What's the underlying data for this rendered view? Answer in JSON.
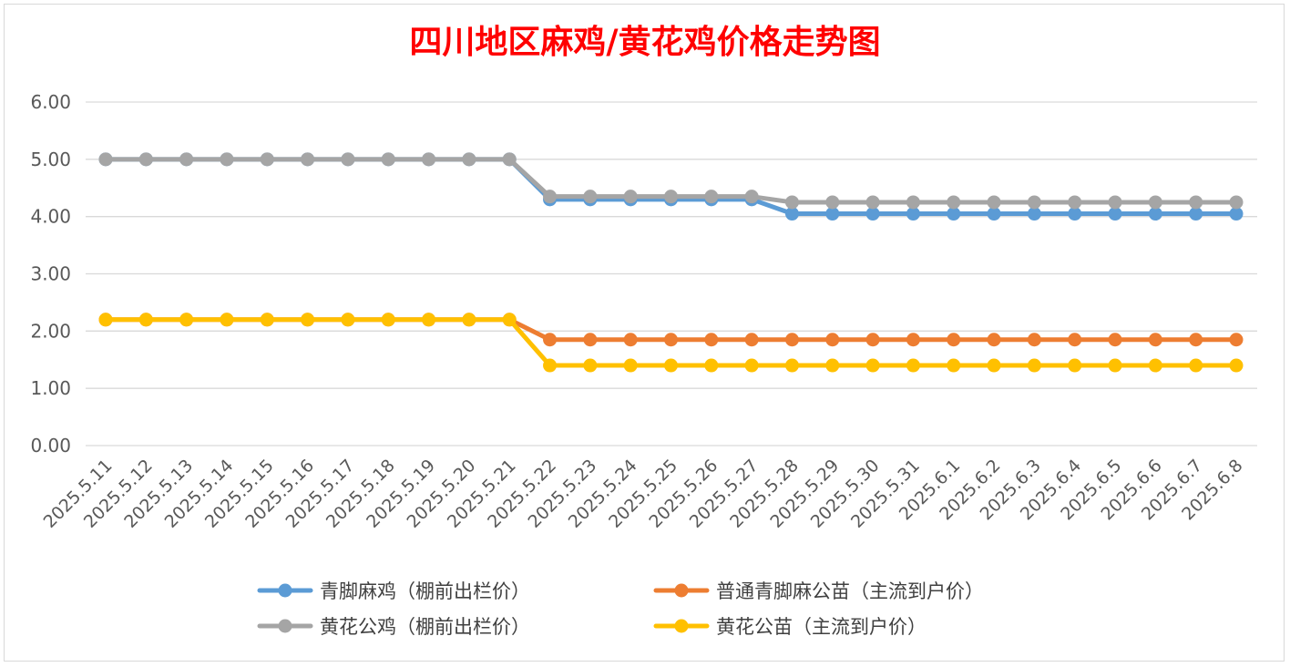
{
  "chart_data": {
    "type": "line",
    "title": "四川地区麻鸡/黄花鸡价格走势图",
    "categories": [
      "2025.5.11",
      "2025.5.12",
      "2025.5.13",
      "2025.5.14",
      "2025.5.15",
      "2025.5.16",
      "2025.5.17",
      "2025.5.18",
      "2025.5.19",
      "2025.5.20",
      "2025.5.21",
      "2025.5.22",
      "2025.5.23",
      "2025.5.24",
      "2025.5.25",
      "2025.5.26",
      "2025.5.27",
      "2025.5.28",
      "2025.5.29",
      "2025.5.30",
      "2025.5.31",
      "2025.6.1",
      "2025.6.2",
      "2025.6.3",
      "2025.6.4",
      "2025.6.5",
      "2025.6.6",
      "2025.6.7",
      "2025.6.8"
    ],
    "y_ticks": [
      "0.00",
      "1.00",
      "2.00",
      "3.00",
      "4.00",
      "5.00",
      "6.00"
    ],
    "ylim": [
      0,
      6
    ],
    "grid": true,
    "legend_position": "bottom",
    "series": [
      {
        "name": "青脚麻鸡（棚前出栏价）",
        "color": "#5b9bd5",
        "values": [
          5.0,
          5.0,
          5.0,
          5.0,
          5.0,
          5.0,
          5.0,
          5.0,
          5.0,
          5.0,
          5.0,
          4.3,
          4.3,
          4.3,
          4.3,
          4.3,
          4.3,
          4.05,
          4.05,
          4.05,
          4.05,
          4.05,
          4.05,
          4.05,
          4.05,
          4.05,
          4.05,
          4.05,
          4.05
        ]
      },
      {
        "name": "普通青脚麻公苗（主流到户价）",
        "color": "#ed7d31",
        "values": [
          2.2,
          2.2,
          2.2,
          2.2,
          2.2,
          2.2,
          2.2,
          2.2,
          2.2,
          2.2,
          2.2,
          1.85,
          1.85,
          1.85,
          1.85,
          1.85,
          1.85,
          1.85,
          1.85,
          1.85,
          1.85,
          1.85,
          1.85,
          1.85,
          1.85,
          1.85,
          1.85,
          1.85,
          1.85
        ]
      },
      {
        "name": "黄花公鸡（棚前出栏价）",
        "color": "#a5a5a5",
        "values": [
          5.0,
          5.0,
          5.0,
          5.0,
          5.0,
          5.0,
          5.0,
          5.0,
          5.0,
          5.0,
          5.0,
          4.35,
          4.35,
          4.35,
          4.35,
          4.35,
          4.35,
          4.25,
          4.25,
          4.25,
          4.25,
          4.25,
          4.25,
          4.25,
          4.25,
          4.25,
          4.25,
          4.25,
          4.25
        ]
      },
      {
        "name": "黄花公苗（主流到户价）",
        "color": "#ffc000",
        "values": [
          2.2,
          2.2,
          2.2,
          2.2,
          2.2,
          2.2,
          2.2,
          2.2,
          2.2,
          2.2,
          2.2,
          1.4,
          1.4,
          1.4,
          1.4,
          1.4,
          1.4,
          1.4,
          1.4,
          1.4,
          1.4,
          1.4,
          1.4,
          1.4,
          1.4,
          1.4,
          1.4,
          1.4,
          1.4
        ]
      }
    ]
  }
}
